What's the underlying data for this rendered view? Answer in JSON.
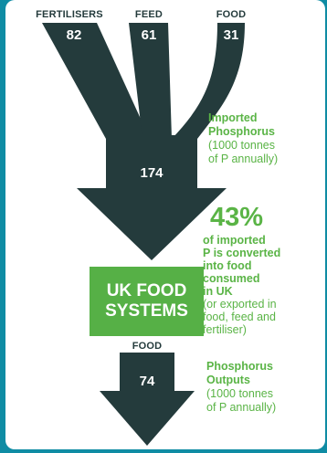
{
  "inputs": [
    {
      "label": "FERTILISERS",
      "value": "82"
    },
    {
      "label": "FEED",
      "value": "61"
    },
    {
      "label": "FOOD",
      "value": "31"
    }
  ],
  "total": "174",
  "imported": {
    "title_line1": "Imported",
    "title_line2": "Phosphorus",
    "sub_line1": "(1000 tonnes",
    "sub_line2": "of P annually)"
  },
  "stat": {
    "percent": "43%",
    "lines": [
      "of imported",
      "P is converted",
      "into food",
      "consumed",
      "in UK"
    ],
    "note_lines": [
      "(or exported in",
      "food, feed and",
      "fertiliser)"
    ]
  },
  "box": {
    "line1": "UK FOOD",
    "line2": "SYSTEMS"
  },
  "output": {
    "label": "FOOD",
    "value": "74"
  },
  "outputs_text": {
    "title_line1": "Phosphorus",
    "title_line2": "Outputs",
    "sub_line1": "(1000 tonnes",
    "sub_line2": "of P annually)"
  },
  "colors": {
    "arrow": "#243b3c",
    "green": "#56b046",
    "frame": "#0f8ca4"
  }
}
